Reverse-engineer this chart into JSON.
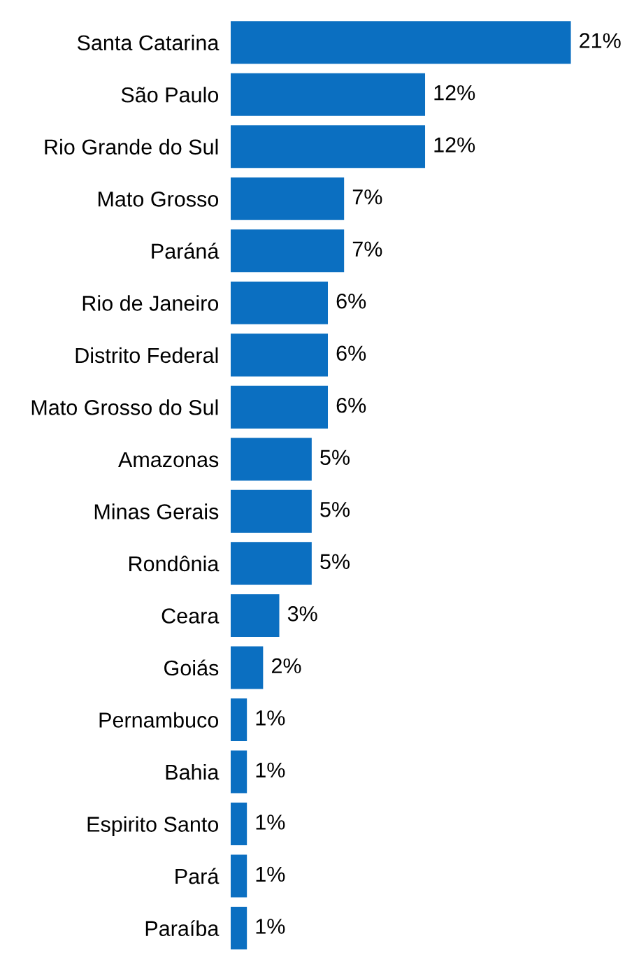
{
  "chart_data": {
    "type": "bar",
    "orientation": "horizontal",
    "categories": [
      "Santa Catarina",
      "São Paulo",
      "Rio Grande do Sul",
      "Mato Grosso",
      "Paráná",
      "Rio de Janeiro",
      "Distrito Federal",
      "Mato Grosso do Sul",
      "Amazonas",
      "Minas Gerais",
      "Rondônia",
      "Ceara",
      "Goiás",
      "Pernambuco",
      "Bahia",
      "Espirito Santo",
      "Pará",
      "Paraíba"
    ],
    "values": [
      21,
      12,
      12,
      7,
      7,
      6,
      6,
      6,
      5,
      5,
      5,
      3,
      2,
      1,
      1,
      1,
      1,
      1
    ],
    "value_labels": [
      "21%",
      "12%",
      "12%",
      "7%",
      "7%",
      "6%",
      "6%",
      "6%",
      "5%",
      "5%",
      "5%",
      "3%",
      "2%",
      "1%",
      "1%",
      "1%",
      "1%",
      "1%"
    ],
    "color": "#0b6fc1",
    "grid": false,
    "legend": false
  }
}
